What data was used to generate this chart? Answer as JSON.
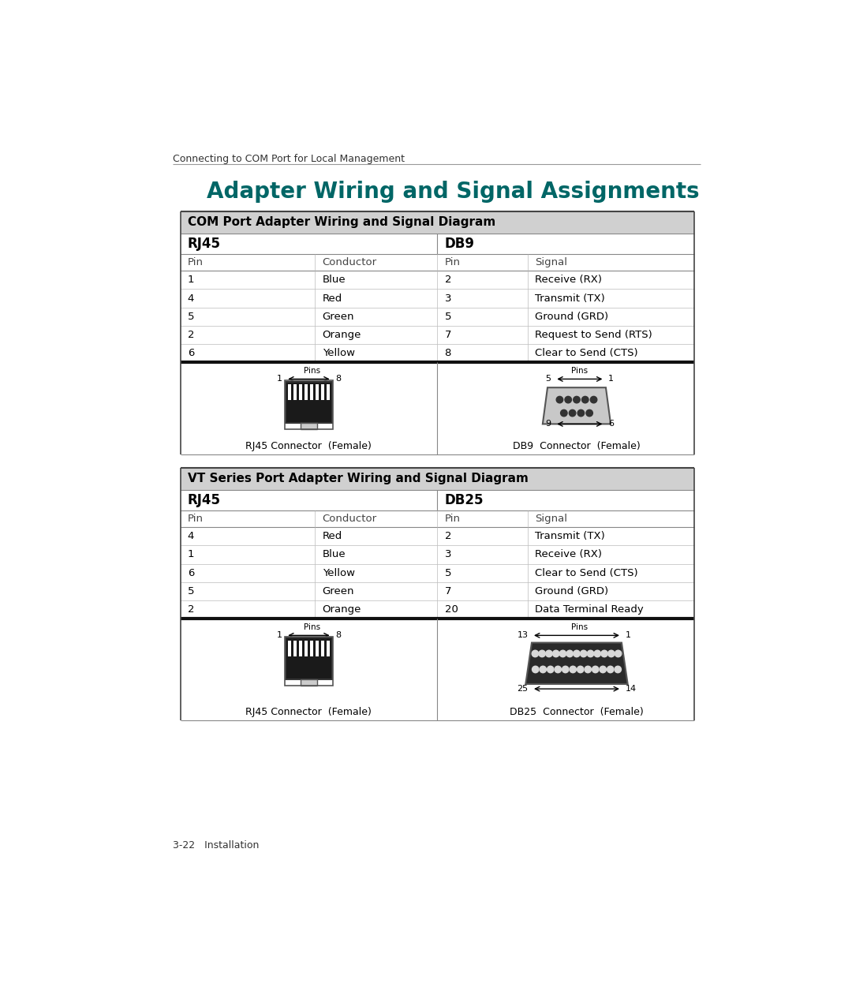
{
  "page_header": "Connecting to COM Port for Local Management",
  "title": "Adapter Wiring and Signal Assignments",
  "title_color": "#006666",
  "footer": "3-22   Installation",
  "table1_header": "COM Port Adapter Wiring and Signal Diagram",
  "table1_col1_header": "RJ45",
  "table1_col2_header": "DB9",
  "table1_sub_headers": [
    "Pin",
    "Conductor",
    "Pin",
    "Signal"
  ],
  "table1_rows": [
    [
      "1",
      "Blue",
      "2",
      "Receive (RX)"
    ],
    [
      "4",
      "Red",
      "3",
      "Transmit (TX)"
    ],
    [
      "5",
      "Green",
      "5",
      "Ground (GRD)"
    ],
    [
      "2",
      "Orange",
      "7",
      "Request to Send (RTS)"
    ],
    [
      "6",
      "Yellow",
      "8",
      "Clear to Send (CTS)"
    ]
  ],
  "table1_rj45_label": "RJ45 Connector  (Female)",
  "table1_db9_label": "DB9  Connector  (Female)",
  "table2_header": "VT Series Port Adapter Wiring and Signal Diagram",
  "table2_col1_header": "RJ45",
  "table2_col2_header": "DB25",
  "table2_sub_headers": [
    "Pin",
    "Conductor",
    "Pin",
    "Signal"
  ],
  "table2_rows": [
    [
      "4",
      "Red",
      "2",
      "Transmit (TX)"
    ],
    [
      "1",
      "Blue",
      "3",
      "Receive (RX)"
    ],
    [
      "6",
      "Yellow",
      "5",
      "Clear to Send (CTS)"
    ],
    [
      "5",
      "Green",
      "7",
      "Ground (GRD)"
    ],
    [
      "2",
      "Orange",
      "20",
      "Data Terminal Ready"
    ]
  ],
  "table2_rj45_label": "RJ45 Connector  (Female)",
  "table2_db25_label": "DB25  Connector  (Female)",
  "header_bg": "#d0d0d0",
  "bg_color": "#ffffff"
}
